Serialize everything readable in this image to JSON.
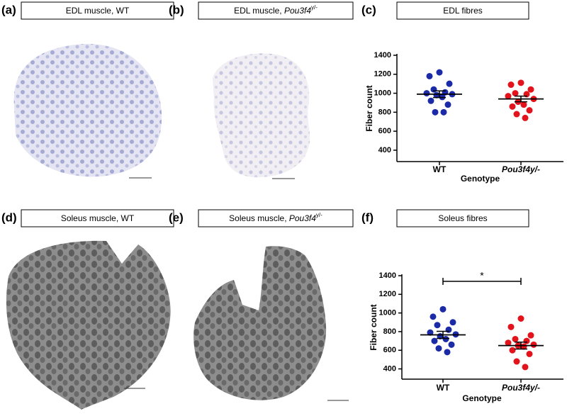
{
  "panels": [
    {
      "label": "(a)",
      "caption": {
        "text": "EDL muscle, WT"
      }
    },
    {
      "label": "(b)",
      "caption": {
        "text": "EDL muscle, ",
        "gene": "Pou3f4",
        "sup": "y/-"
      }
    },
    {
      "label": "(c)",
      "caption": {
        "text": "EDL fibres"
      }
    },
    {
      "label": "(d)",
      "caption": {
        "text": "Soleus muscle, WT"
      }
    },
    {
      "label": "(e)",
      "caption": {
        "text": "Soleus muscle, ",
        "gene": "Pou3f4",
        "sup": "y/-"
      }
    },
    {
      "label": "(f)",
      "caption": {
        "text": "Soleus fibres"
      }
    }
  ],
  "chart_data": [
    {
      "type": "scatter",
      "x_label": "Genotype",
      "y_label": "Fiber count",
      "categories": [
        "WT",
        "Pou3f4y/-"
      ],
      "ylim": [
        280,
        1400
      ],
      "yticks": [
        400,
        600,
        800,
        1000,
        1200,
        1400
      ],
      "series": [
        {
          "name": "WT",
          "color": "#1b2aa6",
          "values": [
            1220,
            1180,
            1100,
            1040,
            1010,
            1000,
            990,
            980,
            960,
            920,
            880,
            800,
            800
          ],
          "mean": 990,
          "sem": 35
        },
        {
          "name": "Pou3f4y/-",
          "color": "#e3121b",
          "values": [
            1110,
            1090,
            1040,
            1000,
            990,
            970,
            940,
            910,
            880,
            860,
            820,
            780,
            740
          ],
          "mean": 940,
          "sem": 30
        }
      ]
    },
    {
      "type": "scatter",
      "x_label": "Genotype",
      "y_label": "Fiber count",
      "categories": [
        "WT",
        "Pou3f4y/-"
      ],
      "ylim": [
        290,
        1400
      ],
      "yticks": [
        400,
        600,
        800,
        1000,
        1200,
        1400
      ],
      "annotation": "*",
      "series": [
        {
          "name": "WT",
          "color": "#1b2aa6",
          "values": [
            1040,
            960,
            900,
            870,
            820,
            790,
            770,
            750,
            720,
            700,
            660,
            620,
            580
          ],
          "mean": 765,
          "sem": 38
        },
        {
          "name": "Pou3f4y/-",
          "color": "#e3121b",
          "values": [
            940,
            850,
            760,
            720,
            700,
            680,
            660,
            650,
            640,
            600,
            560,
            480,
            420
          ],
          "mean": 650,
          "sem": 37
        }
      ]
    }
  ]
}
